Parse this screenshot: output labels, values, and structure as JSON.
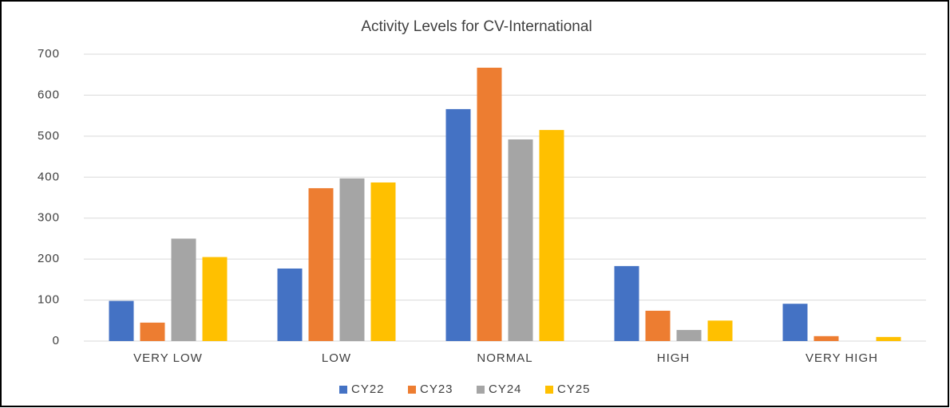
{
  "chart_data": {
    "type": "bar",
    "title": "Activity Levels for CV-International",
    "categories": [
      "VERY LOW",
      "LOW",
      "NORMAL",
      "HIGH",
      "VERY HIGH"
    ],
    "series": [
      {
        "name": "CY22",
        "color": "#4472c4",
        "values": [
          98,
          177,
          566,
          183,
          91
        ]
      },
      {
        "name": "CY23",
        "color": "#ed7d31",
        "values": [
          45,
          373,
          667,
          74,
          12
        ]
      },
      {
        "name": "CY24",
        "color": "#a5a5a5",
        "values": [
          250,
          397,
          492,
          27,
          0
        ]
      },
      {
        "name": "CY25",
        "color": "#ffc000",
        "values": [
          205,
          387,
          515,
          50,
          10
        ]
      }
    ],
    "ylim": [
      0,
      700
    ],
    "yticks": [
      0,
      100,
      200,
      300,
      400,
      500,
      600,
      700
    ],
    "grid": true,
    "legend": "bottom"
  }
}
